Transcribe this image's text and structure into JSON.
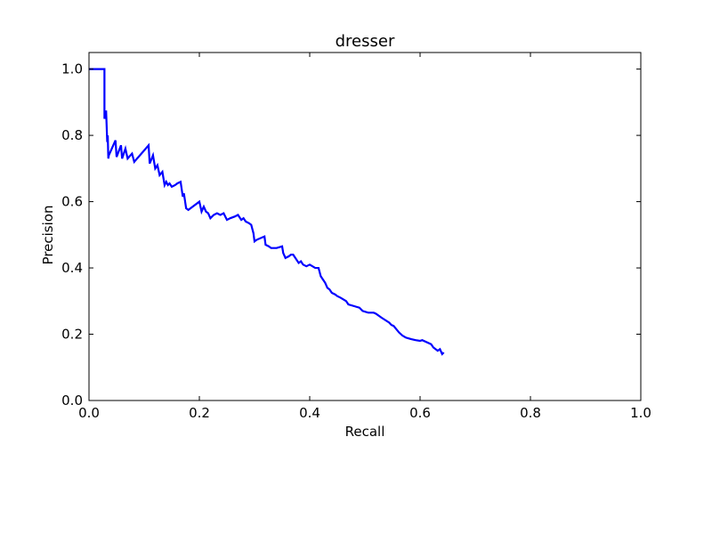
{
  "chart_data": {
    "type": "line",
    "title": "dresser",
    "xlabel": "Recall",
    "ylabel": "Precision",
    "xlim": [
      0.0,
      1.0
    ],
    "ylim": [
      0.0,
      1.05
    ],
    "xticks": [
      "0.0",
      "0.2",
      "0.4",
      "0.6",
      "0.8",
      "1.0"
    ],
    "yticks": [
      "0.0",
      "0.2",
      "0.4",
      "0.6",
      "0.8",
      "1.0"
    ],
    "grid": false,
    "legend": "none",
    "line_color": "#0000ff",
    "series": [
      {
        "x": [
          0.0,
          0.028,
          0.028,
          0.029,
          0.031,
          0.031,
          0.033,
          0.034,
          0.035,
          0.036,
          0.048,
          0.05,
          0.058,
          0.06,
          0.066,
          0.07,
          0.078,
          0.082,
          0.108,
          0.11,
          0.116,
          0.12,
          0.124,
          0.128,
          0.133,
          0.137,
          0.14,
          0.143,
          0.146,
          0.15,
          0.156,
          0.16,
          0.166,
          0.17,
          0.172,
          0.176,
          0.18,
          0.2,
          0.204,
          0.208,
          0.212,
          0.216,
          0.22,
          0.226,
          0.232,
          0.238,
          0.244,
          0.25,
          0.256,
          0.264,
          0.27,
          0.276,
          0.28,
          0.284,
          0.29,
          0.294,
          0.298,
          0.3,
          0.304,
          0.318,
          0.32,
          0.326,
          0.33,
          0.34,
          0.35,
          0.352,
          0.356,
          0.362,
          0.366,
          0.37,
          0.38,
          0.384,
          0.388,
          0.394,
          0.4,
          0.41,
          0.416,
          0.42,
          0.428,
          0.432,
          0.436,
          0.44,
          0.446,
          0.45,
          0.456,
          0.466,
          0.47,
          0.48,
          0.484,
          0.49,
          0.496,
          0.506,
          0.516,
          0.52,
          0.53,
          0.544,
          0.548,
          0.552,
          0.562,
          0.568,
          0.574,
          0.584,
          0.592,
          0.6,
          0.604,
          0.62,
          0.624,
          0.632,
          0.636,
          0.64,
          0.643
        ],
        "y": [
          1.0,
          1.0,
          0.85,
          0.87,
          0.86,
          0.875,
          0.78,
          0.8,
          0.73,
          0.74,
          0.785,
          0.735,
          0.77,
          0.73,
          0.76,
          0.73,
          0.745,
          0.72,
          0.77,
          0.715,
          0.74,
          0.7,
          0.71,
          0.68,
          0.69,
          0.65,
          0.66,
          0.65,
          0.655,
          0.645,
          0.65,
          0.655,
          0.66,
          0.615,
          0.625,
          0.58,
          0.575,
          0.6,
          0.57,
          0.585,
          0.57,
          0.565,
          0.55,
          0.56,
          0.565,
          0.56,
          0.565,
          0.545,
          0.55,
          0.555,
          0.56,
          0.545,
          0.55,
          0.54,
          0.535,
          0.53,
          0.505,
          0.48,
          0.485,
          0.495,
          0.47,
          0.465,
          0.46,
          0.46,
          0.465,
          0.445,
          0.43,
          0.435,
          0.44,
          0.44,
          0.415,
          0.42,
          0.41,
          0.405,
          0.41,
          0.4,
          0.4,
          0.375,
          0.355,
          0.34,
          0.335,
          0.325,
          0.32,
          0.315,
          0.31,
          0.3,
          0.29,
          0.285,
          0.283,
          0.28,
          0.27,
          0.265,
          0.265,
          0.262,
          0.25,
          0.235,
          0.228,
          0.225,
          0.205,
          0.196,
          0.19,
          0.185,
          0.182,
          0.18,
          0.182,
          0.17,
          0.16,
          0.15,
          0.155,
          0.14,
          0.145
        ]
      }
    ]
  }
}
